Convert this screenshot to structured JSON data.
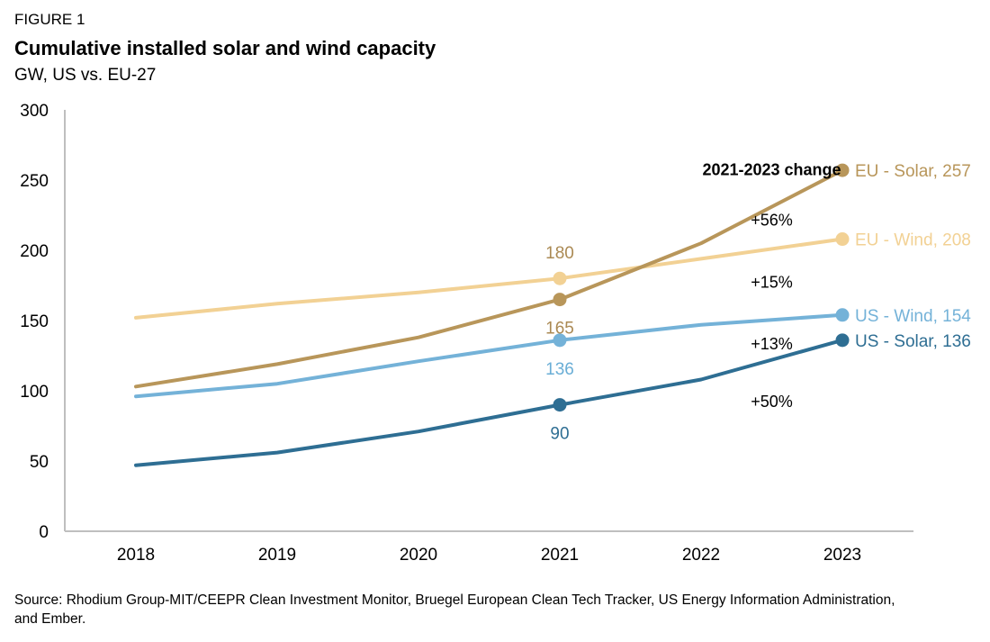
{
  "figure_label": "FIGURE 1",
  "source": "Source: Rhodium Group-MIT/CEEPR Clean Investment Monitor, Bruegel European Clean Tech Tracker, US Energy Information Administration, and Ember.",
  "chart_data": {
    "type": "line",
    "title": "Cumulative installed solar and wind capacity",
    "subtitle": "GW, US vs. EU-27",
    "x": [
      "2018",
      "2019",
      "2020",
      "2021",
      "2022",
      "2023"
    ],
    "ylim": [
      0,
      300
    ],
    "yticks": [
      0,
      50,
      100,
      150,
      200,
      250,
      300
    ],
    "grid": false,
    "series": [
      {
        "name": "EU - Wind",
        "end_label": "EU - Wind, 208",
        "color": "#f2d194",
        "values": [
          152,
          162,
          170,
          180,
          194,
          208
        ],
        "marker_indices": [
          3,
          5
        ],
        "point_labels": [
          {
            "index": 3,
            "text": "180",
            "color": "#ab8a54",
            "pos": "above"
          }
        ]
      },
      {
        "name": "EU - Solar",
        "end_label": "EU - Solar, 257",
        "color": "#b8965a",
        "values": [
          103,
          119,
          138,
          165,
          205,
          257
        ],
        "marker_indices": [
          3,
          5
        ],
        "point_labels": [
          {
            "index": 3,
            "text": "165",
            "color": "#ab8a54",
            "pos": "below"
          }
        ]
      },
      {
        "name": "US - Wind",
        "end_label": "US - Wind, 154",
        "color": "#74b2d8",
        "values": [
          96,
          105,
          121,
          136,
          147,
          154
        ],
        "marker_indices": [
          3,
          5
        ],
        "point_labels": [
          {
            "index": 3,
            "text": "136",
            "color": "#6aaed6",
            "pos": "below"
          }
        ]
      },
      {
        "name": "US - Solar",
        "end_label": "US - Solar, 136",
        "color": "#2e6e93",
        "values": [
          47,
          56,
          71,
          90,
          108,
          136
        ],
        "marker_indices": [
          3,
          5
        ],
        "point_labels": [
          {
            "index": 3,
            "text": "90",
            "color": "#2e6e93",
            "pos": "below"
          }
        ]
      }
    ],
    "annotations": [
      {
        "text": "2021-2023 change",
        "x": 4.5,
        "y": 258,
        "bold": true
      },
      {
        "text": "+56%",
        "x": 4.5,
        "y": 222
      },
      {
        "text": "+15%",
        "x": 4.5,
        "y": 178
      },
      {
        "text": "+13%",
        "x": 4.5,
        "y": 134
      },
      {
        "text": "+50%",
        "x": 4.5,
        "y": 93
      }
    ]
  }
}
